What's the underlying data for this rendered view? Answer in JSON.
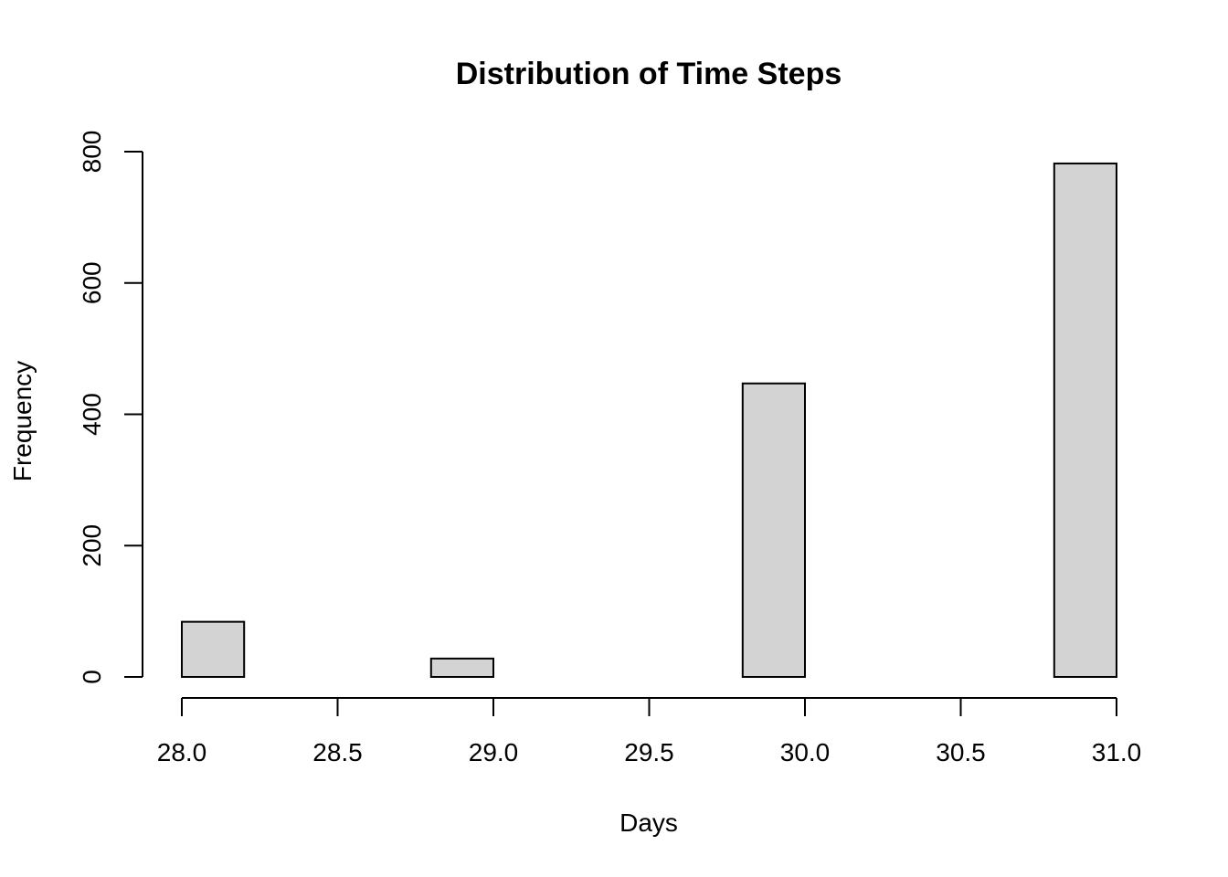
{
  "chart_data": {
    "type": "bar",
    "title": "Distribution of Time Steps",
    "xlabel": "Days",
    "ylabel": "Frequency",
    "xlim": [
      28.0,
      31.0
    ],
    "ylim": [
      0,
      800
    ],
    "x_ticks": [
      28.0,
      28.5,
      29.0,
      29.5,
      30.0,
      30.5,
      31.0
    ],
    "x_tick_labels": [
      "28.0",
      "28.5",
      "29.0",
      "29.5",
      "30.0",
      "30.5",
      "31.0"
    ],
    "y_ticks": [
      0,
      200,
      400,
      600,
      800
    ],
    "y_tick_labels": [
      "0",
      "200",
      "400",
      "600",
      "800"
    ],
    "bins": [
      {
        "x0": 28.0,
        "x1": 28.2,
        "value": 84
      },
      {
        "x0": 28.2,
        "x1": 28.4,
        "value": 0
      },
      {
        "x0": 28.4,
        "x1": 28.6,
        "value": 0
      },
      {
        "x0": 28.6,
        "x1": 28.8,
        "value": 0
      },
      {
        "x0": 28.8,
        "x1": 29.0,
        "value": 28
      },
      {
        "x0": 29.0,
        "x1": 29.2,
        "value": 0
      },
      {
        "x0": 29.2,
        "x1": 29.4,
        "value": 0
      },
      {
        "x0": 29.4,
        "x1": 29.6,
        "value": 0
      },
      {
        "x0": 29.6,
        "x1": 29.8,
        "value": 0
      },
      {
        "x0": 29.8,
        "x1": 30.0,
        "value": 447
      },
      {
        "x0": 30.0,
        "x1": 30.2,
        "value": 0
      },
      {
        "x0": 30.2,
        "x1": 30.4,
        "value": 0
      },
      {
        "x0": 30.4,
        "x1": 30.6,
        "value": 0
      },
      {
        "x0": 30.6,
        "x1": 30.8,
        "value": 0
      },
      {
        "x0": 30.8,
        "x1": 31.0,
        "value": 782
      }
    ],
    "bar_fill": "#d3d3d3",
    "bar_stroke": "#000000",
    "grid": false,
    "legend": "none"
  }
}
